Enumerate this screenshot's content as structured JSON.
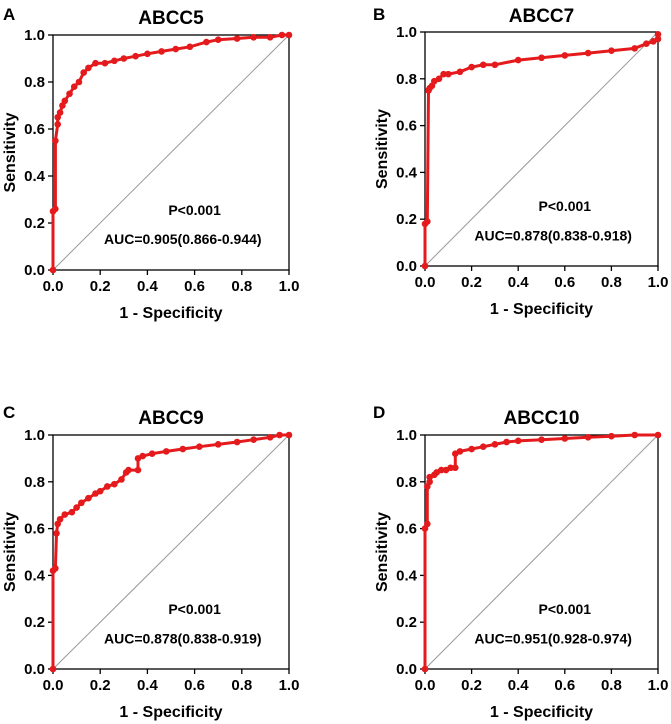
{
  "figure": {
    "xlabel": "1 - Specificity",
    "ylabel": "Sensitivity",
    "ticks": [
      "0.0",
      "0.2",
      "0.4",
      "0.6",
      "0.8",
      "1.0"
    ],
    "curve_color": "#e41a1c",
    "diagonal_color": "#999999"
  },
  "chart_data": [
    {
      "type": "line",
      "panel": "A",
      "title": "ABCC5",
      "xlabel": "1 - Specificity",
      "ylabel": "Sensitivity",
      "xlim": [
        0,
        1
      ],
      "ylim": [
        0,
        1
      ],
      "p_value": "P<0.001",
      "auc": "AUC=0.905(0.866-0.944)",
      "series": [
        {
          "name": "ROC",
          "x": [
            0,
            0,
            0.01,
            0.01,
            0.02,
            0.02,
            0.03,
            0.04,
            0.05,
            0.07,
            0.09,
            0.11,
            0.13,
            0.15,
            0.18,
            0.22,
            0.26,
            0.3,
            0.35,
            0.4,
            0.46,
            0.52,
            0.58,
            0.65,
            0.7,
            0.78,
            0.85,
            0.92,
            0.97,
            1.0
          ],
          "y": [
            0,
            0.25,
            0.26,
            0.55,
            0.62,
            0.65,
            0.67,
            0.7,
            0.72,
            0.75,
            0.78,
            0.8,
            0.84,
            0.86,
            0.88,
            0.88,
            0.89,
            0.9,
            0.91,
            0.92,
            0.93,
            0.94,
            0.95,
            0.97,
            0.98,
            0.985,
            0.99,
            0.99,
            1.0,
            1.0
          ]
        },
        {
          "name": "Reference",
          "x": [
            0,
            1
          ],
          "y": [
            0,
            1
          ]
        }
      ]
    },
    {
      "type": "line",
      "panel": "B",
      "title": "ABCC7",
      "xlabel": "1 - Specificity",
      "ylabel": "Sensitivity",
      "xlim": [
        0,
        1
      ],
      "ylim": [
        0,
        1
      ],
      "p_value": "P<0.001",
      "auc": "AUC=0.878(0.838-0.918)",
      "series": [
        {
          "name": "ROC",
          "x": [
            0,
            0,
            0.01,
            0.015,
            0.02,
            0.03,
            0.04,
            0.06,
            0.08,
            0.1,
            0.15,
            0.2,
            0.25,
            0.3,
            0.4,
            0.5,
            0.6,
            0.7,
            0.8,
            0.9,
            0.95,
            0.98,
            1.0,
            1.0
          ],
          "y": [
            0,
            0.18,
            0.19,
            0.75,
            0.76,
            0.77,
            0.79,
            0.8,
            0.82,
            0.82,
            0.83,
            0.85,
            0.86,
            0.86,
            0.88,
            0.89,
            0.9,
            0.91,
            0.92,
            0.93,
            0.95,
            0.96,
            0.97,
            0.99
          ]
        },
        {
          "name": "Reference",
          "x": [
            0,
            1
          ],
          "y": [
            0,
            1
          ]
        }
      ]
    },
    {
      "type": "line",
      "panel": "C",
      "title": "ABCC9",
      "xlabel": "1 - Specificity",
      "ylabel": "Sensitivity",
      "xlim": [
        0,
        1
      ],
      "ylim": [
        0,
        1
      ],
      "p_value": "P<0.001",
      "auc": "AUC=0.878(0.838-0.919)",
      "series": [
        {
          "name": "ROC",
          "x": [
            0,
            0,
            0.01,
            0.015,
            0.02,
            0.03,
            0.05,
            0.08,
            0.1,
            0.12,
            0.15,
            0.18,
            0.2,
            0.23,
            0.26,
            0.29,
            0.31,
            0.32,
            0.36,
            0.36,
            0.38,
            0.42,
            0.48,
            0.55,
            0.62,
            0.7,
            0.78,
            0.85,
            0.92,
            0.96,
            1.0
          ],
          "y": [
            0,
            0.42,
            0.43,
            0.58,
            0.62,
            0.64,
            0.66,
            0.67,
            0.69,
            0.71,
            0.73,
            0.75,
            0.76,
            0.78,
            0.79,
            0.81,
            0.84,
            0.85,
            0.85,
            0.9,
            0.91,
            0.92,
            0.93,
            0.94,
            0.95,
            0.96,
            0.97,
            0.98,
            0.99,
            1.0,
            1.0
          ]
        },
        {
          "name": "Reference",
          "x": [
            0,
            1
          ],
          "y": [
            0,
            1
          ]
        }
      ]
    },
    {
      "type": "line",
      "panel": "D",
      "title": "ABCC10",
      "xlabel": "1 - Specificity",
      "ylabel": "Sensitivity",
      "xlim": [
        0,
        1
      ],
      "ylim": [
        0,
        1
      ],
      "p_value": "P<0.001",
      "auc": "AUC=0.951(0.928-0.974)",
      "series": [
        {
          "name": "ROC",
          "x": [
            0,
            0,
            0.01,
            0.01,
            0.02,
            0.02,
            0.04,
            0.05,
            0.07,
            0.09,
            0.11,
            0.13,
            0.13,
            0.15,
            0.2,
            0.25,
            0.3,
            0.35,
            0.4,
            0.5,
            0.6,
            0.7,
            0.8,
            0.9,
            1.0
          ],
          "y": [
            0,
            0.6,
            0.62,
            0.78,
            0.8,
            0.82,
            0.83,
            0.84,
            0.85,
            0.85,
            0.86,
            0.86,
            0.92,
            0.93,
            0.94,
            0.95,
            0.96,
            0.97,
            0.975,
            0.98,
            0.985,
            0.99,
            0.995,
            1.0,
            1.0
          ]
        },
        {
          "name": "Reference",
          "x": [
            0,
            1
          ],
          "y": [
            0,
            1
          ]
        }
      ]
    }
  ]
}
